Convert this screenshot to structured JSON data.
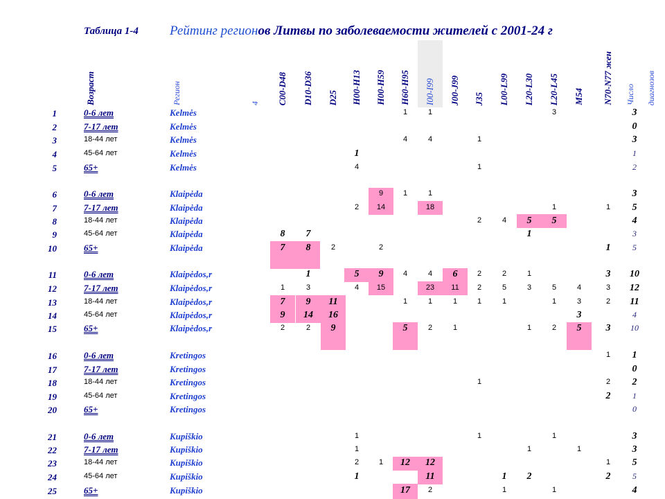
{
  "title": {
    "label": "Таблица 1-4",
    "part1": "Рейтинг регион",
    "part2": "ов Литвы по заболеваемости жителей с 2001-24 г"
  },
  "headers": {
    "age": "Возраст",
    "region": "Регион",
    "four": "4",
    "cols": [
      "C00-D48",
      "D10-D36",
      "D25",
      "H00-H13",
      "H00-H59",
      "H60-H95",
      "I00-I99",
      "J00-J99",
      "J35",
      "L00-L99",
      "L20-L30",
      "L20-L45",
      "M54",
      "N70-N77 жен"
    ],
    "count1": "Число",
    "count2": "диагнозов"
  },
  "rows": [
    {
      "n": "1",
      "age": "0-6 лет",
      "region": "Kelmės",
      "cells": {
        "H60-H95": "1",
        "I00-I99": "1",
        "L20-L45": "3"
      },
      "total": "3"
    },
    {
      "n": "2",
      "age": "7-17 лет",
      "region": "Kelmės",
      "cells": {},
      "total": "0"
    },
    {
      "n": "3",
      "age": "18-44 лет",
      "region": "Kelmės",
      "cells": {
        "H60-H95": "4",
        "I00-I99": "4",
        "J35": "1"
      },
      "total": "3"
    },
    {
      "n": "4",
      "age": "45-64 лет",
      "region": "Kelmės",
      "cells": {
        "H00-H13": "1"
      },
      "total": "1"
    },
    {
      "n": "5",
      "age": "65+",
      "region": "Kelmės",
      "cells": {
        "H00-H13": "4",
        "J35": "1"
      },
      "total": "2"
    },
    {
      "n": "6",
      "age": "0-6 лет",
      "region": "Klaipėda",
      "cells": {
        "H00-H59": "9",
        "H60-H95": "1",
        "I00-I99": "1"
      },
      "total": "3"
    },
    {
      "n": "7",
      "age": "7-17 лет",
      "region": "Klaipėda",
      "cells": {
        "H00-H13": "2",
        "H00-H59": "14",
        "I00-I99": "18",
        "L20-L45": "1",
        "N70-N77 жен": "1"
      },
      "total": "5"
    },
    {
      "n": "8",
      "age": "18-44 лет",
      "region": "Klaipėda",
      "cells": {
        "J35": "2",
        "L00-L99": "4",
        "L20-L30": "5",
        "L20-L45": "5"
      },
      "total": "4"
    },
    {
      "n": "9",
      "age": "45-64 лет",
      "region": "Klaipėda",
      "cells": {
        "C00-D48": "8",
        "D10-D36": "7",
        "L20-L30": "1"
      },
      "total": "3"
    },
    {
      "n": "10",
      "age": "65+",
      "region": "Klaipėda",
      "cells": {
        "C00-D48": "7",
        "D10-D36": "8",
        "D25": "2",
        "H00-H59": "2",
        "N70-N77 жен": "1"
      },
      "total": "5"
    },
    {
      "n": "11",
      "age": "0-6 лет",
      "region": "Klaipėdos,r",
      "cells": {
        "D10-D36": "1",
        "H00-H13": "5",
        "H00-H59": "9",
        "H60-H95": "4",
        "I00-I99": "4",
        "J00-J99": "6",
        "J35": "2",
        "L00-L99": "2",
        "L20-L30": "1",
        "N70-N77 жен": "3"
      },
      "total": "10"
    },
    {
      "n": "12",
      "age": "7-17 лет",
      "region": "Klaipėdos,r",
      "cells": {
        "C00-D48": "1",
        "D10-D36": "3",
        "H00-H13": "4",
        "H00-H59": "15",
        "I00-I99": "23",
        "J00-J99": "11",
        "J35": "2",
        "L00-L99": "5",
        "L20-L30": "3",
        "L20-L45": "5",
        "M54": "4",
        "N70-N77 жен": "3"
      },
      "total": "12"
    },
    {
      "n": "13",
      "age": "18-44 лет",
      "region": "Klaipėdos,r",
      "cells": {
        "C00-D48": "7",
        "D10-D36": "9",
        "D25": "11",
        "H60-H95": "1",
        "I00-I99": "1",
        "J00-J99": "1",
        "J35": "1",
        "L00-L99": "1",
        "L20-L45": "1",
        "M54": "3",
        "N70-N77 жен": "2"
      },
      "total": "11"
    },
    {
      "n": "14",
      "age": "45-64 лет",
      "region": "Klaipėdos,r",
      "cells": {
        "C00-D48": "9",
        "D10-D36": "14",
        "D25": "16",
        "M54": "3"
      },
      "total": "4"
    },
    {
      "n": "15",
      "age": "65+",
      "region": "Klaipėdos,r",
      "cells": {
        "C00-D48": "2",
        "D10-D36": "2",
        "D25": "9",
        "H60-H95": "5",
        "I00-I99": "2",
        "J00-J99": "1",
        "L20-L30": "1",
        "L20-L45": "2",
        "M54": "5",
        "N70-N77 жен": "3"
      },
      "total": "10"
    },
    {
      "n": "16",
      "age": "0-6 лет",
      "region": "Kretingos",
      "cells": {
        "N70-N77 жен": "1"
      },
      "total": "1"
    },
    {
      "n": "17",
      "age": "7-17 лет",
      "region": "Kretingos",
      "cells": {},
      "total": "0"
    },
    {
      "n": "18",
      "age": "18-44 лет",
      "region": "Kretingos",
      "cells": {
        "J35": "1",
        "N70-N77 жен": "2"
      },
      "total": "2"
    },
    {
      "n": "19",
      "age": "45-64 лет",
      "region": "Kretingos",
      "cells": {
        "N70-N77 жен": "2"
      },
      "total": "1"
    },
    {
      "n": "20",
      "age": "65+",
      "region": "Kretingos",
      "cells": {},
      "total": "0"
    },
    {
      "n": "21",
      "age": "0-6 лет",
      "region": "Kupiškio",
      "cells": {
        "H00-H13": "1",
        "J35": "1",
        "L20-L45": "1"
      },
      "total": "3"
    },
    {
      "n": "22",
      "age": "7-17 лет",
      "region": "Kupiškio",
      "cells": {
        "H00-H13": "1",
        "L20-L30": "1",
        "M54": "1"
      },
      "total": "3"
    },
    {
      "n": "23",
      "age": "18-44 лет",
      "region": "Kupiškio",
      "cells": {
        "H00-H13": "2",
        "H00-H59": "1",
        "H60-H95": "12",
        "I00-I99": "12",
        "N70-N77 жен": "1"
      },
      "total": "5"
    },
    {
      "n": "24",
      "age": "45-64 лет",
      "region": "Kupiškio",
      "cells": {
        "H00-H13": "1",
        "I00-I99": "11",
        "L00-L99": "1",
        "L20-L30": "2",
        "N70-N77 жен": "2"
      },
      "total": "5"
    },
    {
      "n": "25",
      "age": "65+",
      "region": "Kupiškio",
      "cells": {
        "H60-H95": "17",
        "I00-I99": "2",
        "L00-L99": "1",
        "L20-L45": "1"
      },
      "total": "4"
    }
  ]
}
